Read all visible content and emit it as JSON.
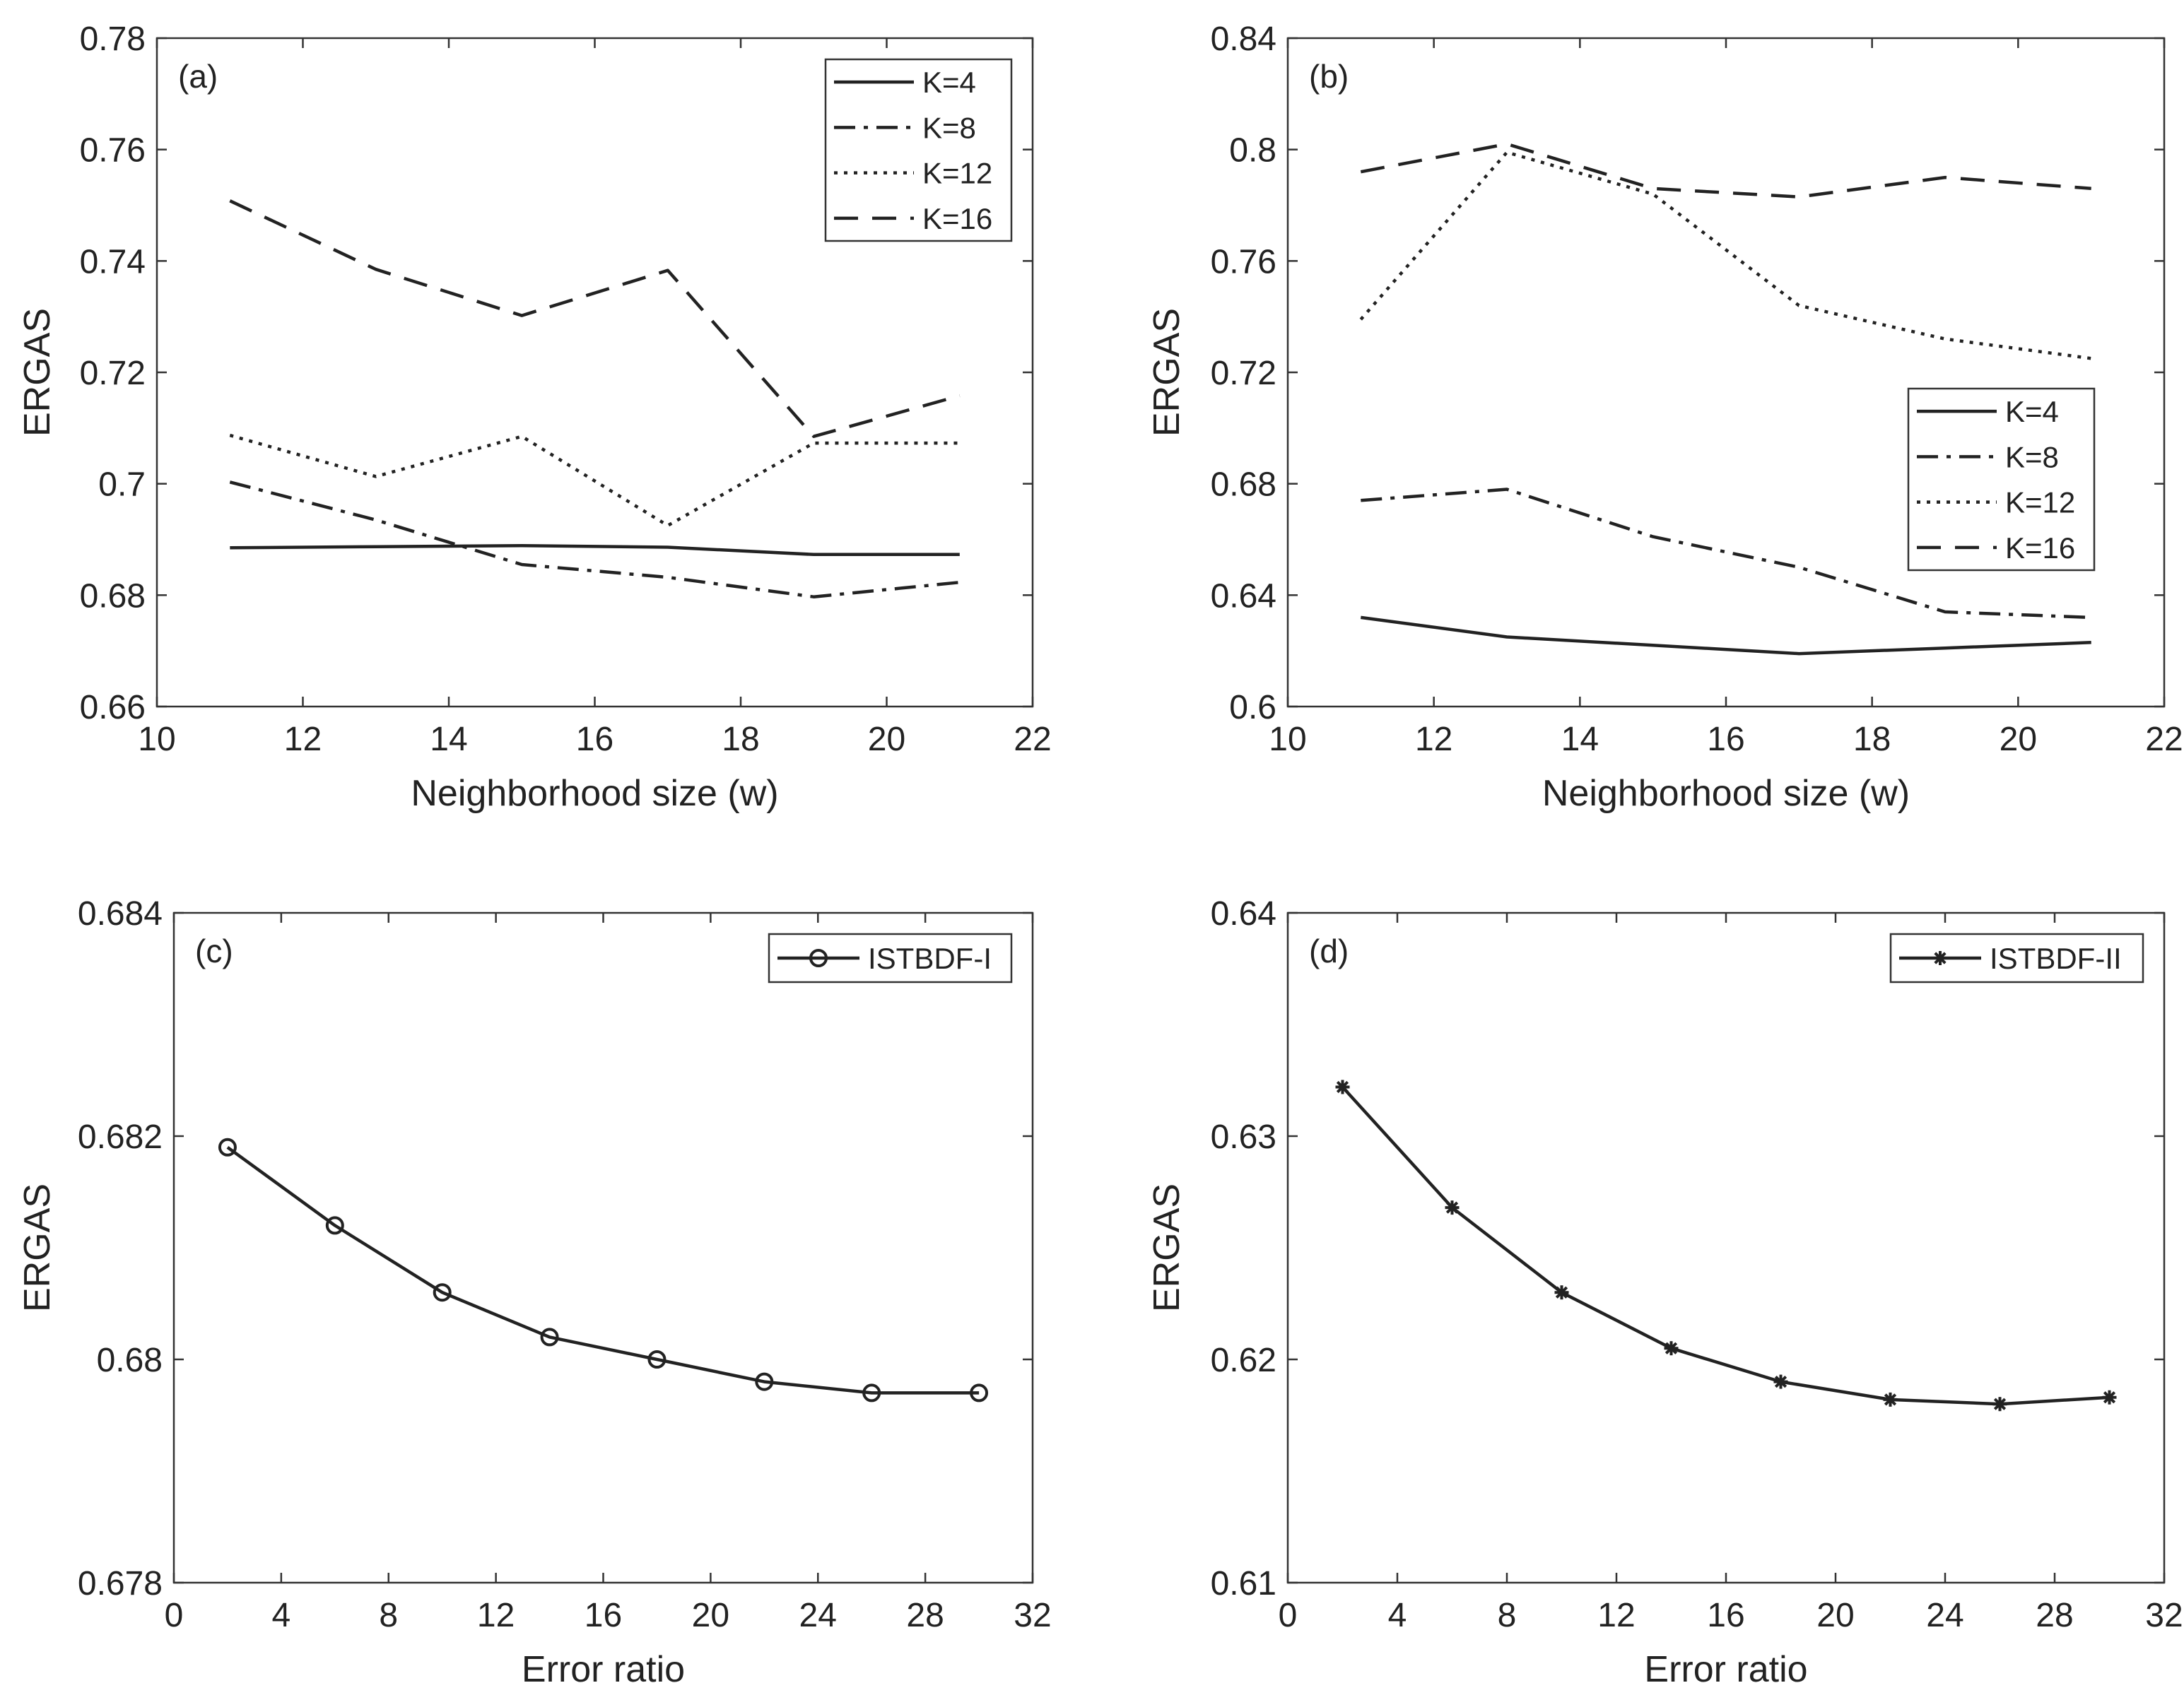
{
  "chart_data": [
    {
      "panel": "(a)",
      "type": "line",
      "xlabel": "Neighborhood size (w)",
      "ylabel": "ERGAS",
      "xlim": [
        10,
        22
      ],
      "ylim": [
        0.66,
        0.78
      ],
      "xticks": [
        10,
        12,
        14,
        16,
        18,
        20,
        22
      ],
      "yticks": [
        0.66,
        0.68,
        0.7,
        0.72,
        0.74,
        0.76,
        0.78
      ],
      "xtick_labels": [
        "10",
        "12",
        "14",
        "16",
        "18",
        "20",
        "22"
      ],
      "ytick_labels": [
        "0.66",
        "0.68",
        "0.7",
        "0.72",
        "0.74",
        "0.76",
        "0.78"
      ],
      "x": [
        11,
        13,
        15,
        17,
        19,
        21
      ],
      "legend": "top-right",
      "series": [
        {
          "name": "K=4",
          "style": "solid",
          "values": [
            0.6885,
            0.6887,
            0.6889,
            0.6886,
            0.6873,
            0.6873
          ]
        },
        {
          "name": "K=8",
          "style": "dashdot",
          "values": [
            0.7003,
            0.6935,
            0.6855,
            0.6832,
            0.6797,
            0.6823
          ]
        },
        {
          "name": "K=12",
          "style": "dotted",
          "values": [
            0.7087,
            0.7013,
            0.7085,
            0.6925,
            0.7073,
            0.7073
          ]
        },
        {
          "name": "K=16",
          "style": "dashed",
          "values": [
            0.7508,
            0.7385,
            0.7302,
            0.7383,
            0.7085,
            0.7158
          ]
        }
      ]
    },
    {
      "panel": "(b)",
      "type": "line",
      "xlabel": "Neighborhood size (w)",
      "ylabel": "ERGAS",
      "xlim": [
        10,
        22
      ],
      "ylim": [
        0.6,
        0.84
      ],
      "xticks": [
        10,
        12,
        14,
        16,
        18,
        20,
        22
      ],
      "yticks": [
        0.6,
        0.64,
        0.68,
        0.72,
        0.76,
        0.8,
        0.84
      ],
      "xtick_labels": [
        "10",
        "12",
        "14",
        "16",
        "18",
        "20",
        "22"
      ],
      "ytick_labels": [
        "0.6",
        "0.64",
        "0.68",
        "0.72",
        "0.76",
        "0.8",
        "0.84"
      ],
      "x": [
        11,
        13,
        15,
        17,
        19,
        21
      ],
      "legend": "center-right",
      "series": [
        {
          "name": "K=4",
          "style": "solid",
          "values": [
            0.632,
            0.625,
            0.622,
            0.619,
            0.621,
            0.623
          ]
        },
        {
          "name": "K=8",
          "style": "dashdot",
          "values": [
            0.674,
            0.678,
            0.661,
            0.65,
            0.634,
            0.632
          ]
        },
        {
          "name": "K=12",
          "style": "dotted",
          "values": [
            0.739,
            0.799,
            0.784,
            0.744,
            0.732,
            0.725
          ]
        },
        {
          "name": "K=16",
          "style": "dashed",
          "values": [
            0.792,
            0.802,
            0.786,
            0.783,
            0.79,
            0.786
          ]
        }
      ]
    },
    {
      "panel": "(c)",
      "type": "line",
      "xlabel": "Error ratio",
      "ylabel": "ERGAS",
      "xlim": [
        0,
        32
      ],
      "ylim": [
        0.678,
        0.684
      ],
      "xticks": [
        0,
        4,
        8,
        12,
        16,
        20,
        24,
        28,
        32
      ],
      "yticks": [
        0.678,
        0.68,
        0.682,
        0.684
      ],
      "xtick_labels": [
        "0",
        "4",
        "8",
        "12",
        "16",
        "20",
        "24",
        "28",
        "32"
      ],
      "ytick_labels": [
        "0.678",
        "0.68",
        "0.682",
        "0.684"
      ],
      "x": [
        2,
        6,
        10,
        14,
        18,
        22,
        26,
        30
      ],
      "legend": "top-right",
      "series": [
        {
          "name": "ISTBDF-I",
          "style": "solid",
          "marker": "circle",
          "values": [
            0.6819,
            0.6812,
            0.6806,
            0.6802,
            0.68,
            0.6798,
            0.6797,
            0.6797
          ]
        }
      ]
    },
    {
      "panel": "(d)",
      "type": "line",
      "xlabel": "Error ratio",
      "ylabel": "ERGAS",
      "xlim": [
        0,
        32
      ],
      "ylim": [
        0.61,
        0.64
      ],
      "xticks": [
        0,
        4,
        8,
        12,
        16,
        20,
        24,
        28,
        32
      ],
      "yticks": [
        0.61,
        0.62,
        0.63,
        0.64
      ],
      "xtick_labels": [
        "0",
        "4",
        "8",
        "12",
        "16",
        "20",
        "24",
        "28",
        "32"
      ],
      "ytick_labels": [
        "0.61",
        "0.62",
        "0.63",
        "0.64"
      ],
      "x": [
        2,
        6,
        10,
        14,
        18,
        22,
        26,
        30
      ],
      "legend": "top-right",
      "series": [
        {
          "name": "ISTBDF-II",
          "style": "solid",
          "marker": "star",
          "values": [
            0.6322,
            0.6268,
            0.623,
            0.6205,
            0.619,
            0.6182,
            0.618,
            0.6183
          ]
        }
      ]
    }
  ]
}
